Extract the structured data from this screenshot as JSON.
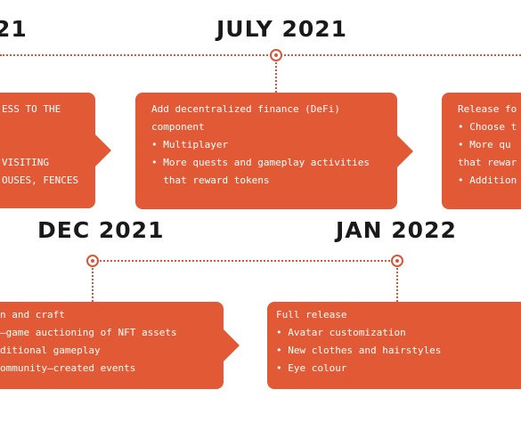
{
  "timeline": {
    "headings": {
      "h1": "21",
      "h2": "JULY 2021",
      "h3": "DEC 2021",
      "h4": "JAN 2022"
    },
    "card_a": {
      "lines": [
        "ESS TO THE",
        "",
        "",
        "VISITING",
        "OUSES, FENCES"
      ]
    },
    "card_b": {
      "lines": [
        "Add decentralized finance (DeFi)",
        "component",
        "• Multiplayer",
        "• More quests and gameplay activities",
        "  that reward tokens"
      ]
    },
    "card_c": {
      "lines": [
        "Release fo",
        "• Choose t",
        "• More qu",
        "that rewar",
        "• Addition"
      ]
    },
    "card_d": {
      "lines": [
        "n and craft",
        "–game auctioning of NFT assets",
        "ditional gameplay",
        "ommunity–created events"
      ]
    },
    "card_e": {
      "lines": [
        "Full release",
        "• Avatar customization",
        "• New clothes and hairstyles",
        "• Eye colour"
      ]
    }
  }
}
